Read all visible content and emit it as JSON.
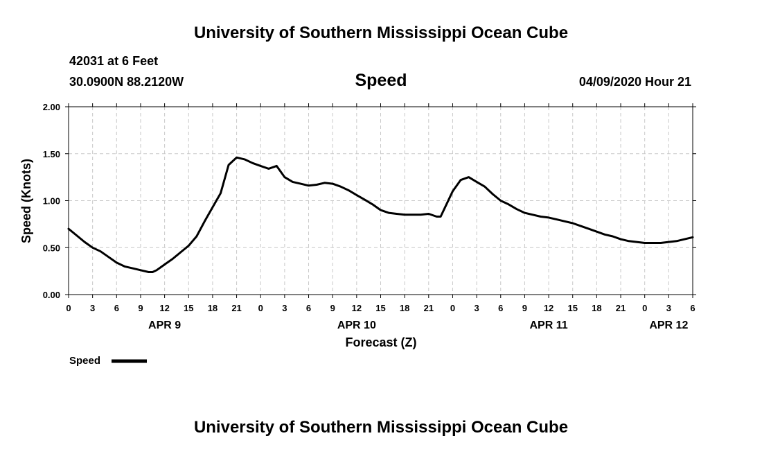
{
  "header": {
    "title": "University of Southern Mississippi Ocean Cube",
    "station": "42031 at 6 Feet",
    "coords": "30.0900N 88.2120W",
    "datetime": "04/09/2020 Hour 21"
  },
  "footer": {
    "title": "University of Southern Mississippi Ocean Cube"
  },
  "chart_data": {
    "type": "line",
    "title": "Speed",
    "xlabel": "Forecast (Z)",
    "ylabel": "Speed (Knots)",
    "ylim": [
      0,
      2
    ],
    "xlim": [
      0,
      78
    ],
    "grid": true,
    "legend_position": "bottom-left",
    "yticks": [
      "0.00",
      "0.50",
      "1.00",
      "1.50",
      "2.00"
    ],
    "ytick_values": [
      0,
      0.5,
      1,
      1.5,
      2
    ],
    "xticks": [
      {
        "h": 0,
        "label": "0"
      },
      {
        "h": 3,
        "label": "3"
      },
      {
        "h": 6,
        "label": "6"
      },
      {
        "h": 9,
        "label": "9"
      },
      {
        "h": 12,
        "label": "12"
      },
      {
        "h": 15,
        "label": "15"
      },
      {
        "h": 18,
        "label": "18"
      },
      {
        "h": 21,
        "label": "21"
      },
      {
        "h": 24,
        "label": "0"
      },
      {
        "h": 27,
        "label": "3"
      },
      {
        "h": 30,
        "label": "6"
      },
      {
        "h": 33,
        "label": "9"
      },
      {
        "h": 36,
        "label": "12"
      },
      {
        "h": 39,
        "label": "15"
      },
      {
        "h": 42,
        "label": "18"
      },
      {
        "h": 45,
        "label": "21"
      },
      {
        "h": 48,
        "label": "0"
      },
      {
        "h": 51,
        "label": "3"
      },
      {
        "h": 54,
        "label": "6"
      },
      {
        "h": 57,
        "label": "9"
      },
      {
        "h": 60,
        "label": "12"
      },
      {
        "h": 63,
        "label": "15"
      },
      {
        "h": 66,
        "label": "18"
      },
      {
        "h": 69,
        "label": "21"
      },
      {
        "h": 72,
        "label": "0"
      },
      {
        "h": 75,
        "label": "3"
      },
      {
        "h": 78,
        "label": "6"
      }
    ],
    "date_labels": [
      {
        "h": 12,
        "label": "APR 9"
      },
      {
        "h": 36,
        "label": "APR 10"
      },
      {
        "h": 60,
        "label": "APR 11"
      },
      {
        "h": 75,
        "label": "APR 12"
      }
    ],
    "series": [
      {
        "name": "Speed",
        "color": "#000000",
        "points": [
          [
            0,
            0.7
          ],
          [
            1,
            0.63
          ],
          [
            2,
            0.56
          ],
          [
            3,
            0.5
          ],
          [
            4,
            0.46
          ],
          [
            5,
            0.4
          ],
          [
            6,
            0.34
          ],
          [
            7,
            0.3
          ],
          [
            8,
            0.28
          ],
          [
            9,
            0.26
          ],
          [
            10,
            0.24
          ],
          [
            10.5,
            0.24
          ],
          [
            11,
            0.26
          ],
          [
            12,
            0.32
          ],
          [
            13,
            0.38
          ],
          [
            14,
            0.45
          ],
          [
            15,
            0.52
          ],
          [
            16,
            0.62
          ],
          [
            17,
            0.78
          ],
          [
            18,
            0.93
          ],
          [
            19,
            1.08
          ],
          [
            20,
            1.38
          ],
          [
            21,
            1.46
          ],
          [
            22,
            1.44
          ],
          [
            23,
            1.4
          ],
          [
            24,
            1.37
          ],
          [
            25,
            1.34
          ],
          [
            26,
            1.37
          ],
          [
            27,
            1.25
          ],
          [
            28,
            1.2
          ],
          [
            29,
            1.18
          ],
          [
            30,
            1.16
          ],
          [
            31,
            1.17
          ],
          [
            32,
            1.19
          ],
          [
            33,
            1.18
          ],
          [
            34,
            1.15
          ],
          [
            35,
            1.11
          ],
          [
            36,
            1.06
          ],
          [
            37,
            1.01
          ],
          [
            38,
            0.96
          ],
          [
            39,
            0.9
          ],
          [
            40,
            0.87
          ],
          [
            41,
            0.86
          ],
          [
            42,
            0.85
          ],
          [
            43,
            0.85
          ],
          [
            44,
            0.85
          ],
          [
            45,
            0.86
          ],
          [
            46,
            0.83
          ],
          [
            46.5,
            0.83
          ],
          [
            47,
            0.92
          ],
          [
            48,
            1.1
          ],
          [
            49,
            1.22
          ],
          [
            50,
            1.25
          ],
          [
            51,
            1.2
          ],
          [
            52,
            1.15
          ],
          [
            53,
            1.07
          ],
          [
            54,
            1.0
          ],
          [
            55,
            0.96
          ],
          [
            56,
            0.91
          ],
          [
            57,
            0.87
          ],
          [
            58,
            0.85
          ],
          [
            59,
            0.83
          ],
          [
            60,
            0.82
          ],
          [
            61,
            0.8
          ],
          [
            62,
            0.78
          ],
          [
            63,
            0.76
          ],
          [
            64,
            0.73
          ],
          [
            65,
            0.7
          ],
          [
            66,
            0.67
          ],
          [
            67,
            0.64
          ],
          [
            68,
            0.62
          ],
          [
            69,
            0.59
          ],
          [
            70,
            0.57
          ],
          [
            71,
            0.56
          ],
          [
            72,
            0.55
          ],
          [
            73,
            0.55
          ],
          [
            74,
            0.55
          ],
          [
            75,
            0.56
          ],
          [
            76,
            0.57
          ],
          [
            77,
            0.59
          ],
          [
            78,
            0.61
          ]
        ]
      }
    ]
  }
}
